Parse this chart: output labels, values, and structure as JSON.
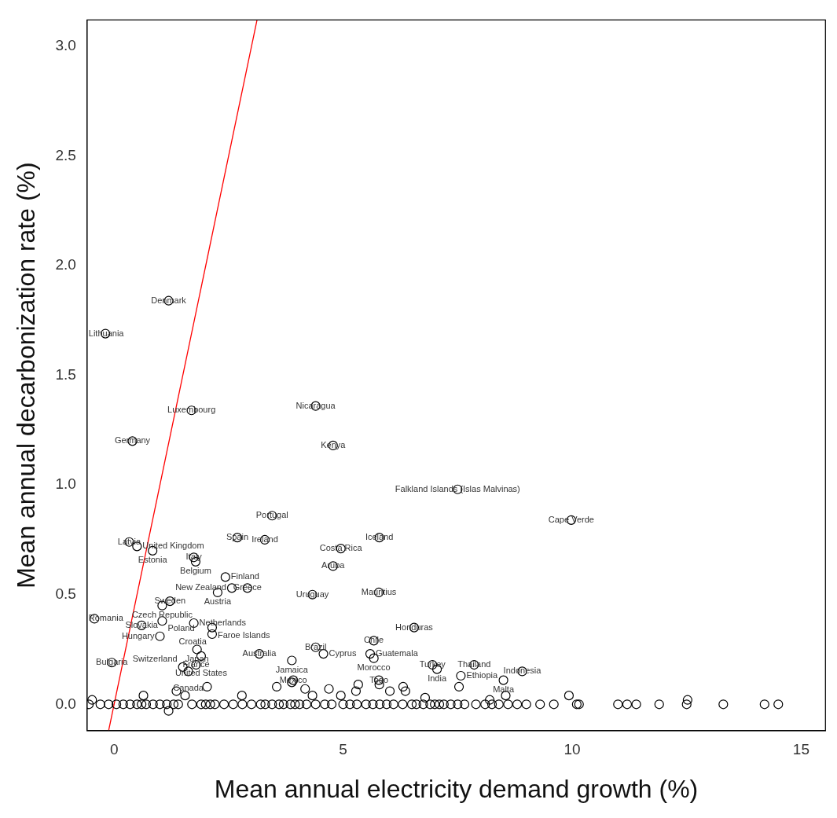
{
  "chart_data": {
    "type": "scatter",
    "xlabel": "Mean annual electricity demand growth (%)",
    "ylabel": "Mean annual decarbonization rate (%)",
    "xlim": [
      -0.59,
      15.53
    ],
    "ylim": [
      -0.12,
      3.12
    ],
    "xticks": [
      0,
      5,
      10,
      15
    ],
    "yticks": [
      {
        "value": 0,
        "label": "0.0"
      },
      {
        "value": 0.5,
        "label": "0.5"
      },
      {
        "value": 1,
        "label": "1.0"
      },
      {
        "value": 1.5,
        "label": "1.5"
      },
      {
        "value": 2,
        "label": "2.0"
      },
      {
        "value": 2.5,
        "label": "2.5"
      },
      {
        "value": 3,
        "label": "3.0"
      }
    ],
    "grid": false,
    "legend": false,
    "series": [
      {
        "type": "scatter",
        "color": "#000000",
        "marker": "circle",
        "x": [
          1.19,
          -0.19,
          1.69,
          0.4,
          4.4,
          4.78,
          7.5,
          9.98,
          3.45,
          5.79,
          2.69,
          3.29,
          4.95,
          4.78,
          0.33,
          0.5,
          0.84,
          1.74,
          1.78,
          2.43,
          2.91,
          2.57,
          2.26,
          4.33,
          5.78,
          1.22,
          1.05,
          -0.43,
          0.6,
          1.05,
          1.74,
          2.14,
          2.14,
          1,
          6.55,
          5.67,
          4.4,
          4.57,
          5.59,
          5.67,
          1.81,
          1.9,
          3.17,
          3.88,
          -0.05,
          1.5,
          1.79,
          1.62,
          6.95,
          7.05,
          7.86,
          7.57,
          8.91,
          8.5,
          3.91,
          5.78,
          -0.48,
          0.64,
          1.36,
          1.55,
          1.19,
          2.03,
          2.79,
          3.55,
          3.88,
          4.17,
          4.33,
          4.69,
          4.95,
          5.33,
          5.28,
          5.79,
          6.02,
          6.31,
          6.36,
          6.79,
          7.53,
          8.55,
          9.93,
          12.52,
          8.2,
          -0.55,
          -0.3,
          -0.12,
          0.05,
          0.2,
          0.35,
          0.5,
          0.6,
          0.7,
          0.85,
          1,
          1.15,
          1.3,
          1.4,
          1.7,
          1.9,
          2,
          2.1,
          2.2,
          2.4,
          2.6,
          2.8,
          3,
          3.2,
          3.3,
          3.45,
          3.6,
          3.7,
          3.85,
          3.95,
          4.05,
          4.2,
          4.4,
          4.6,
          4.75,
          5,
          5.15,
          5.3,
          5.5,
          5.65,
          5.8,
          5.95,
          6.1,
          6.3,
          6.5,
          6.6,
          6.75,
          6.9,
          7.1,
          7.2,
          7.35,
          7.5,
          7.65,
          7.9,
          8.1,
          8.25,
          8.6,
          8.8,
          9,
          9.3,
          9.6,
          10.1,
          11,
          11.2,
          11.4,
          11.9,
          12.5,
          13.3,
          14.2,
          14.5,
          7,
          8.4,
          10.15
        ],
        "values": [
          1.84,
          1.69,
          1.34,
          1.2,
          1.36,
          1.18,
          0.98,
          0.84,
          0.86,
          0.76,
          0.76,
          0.75,
          0.71,
          0.63,
          0.74,
          0.72,
          0.7,
          0.67,
          0.65,
          0.58,
          0.53,
          0.53,
          0.51,
          0.5,
          0.51,
          0.47,
          0.45,
          0.39,
          0.36,
          0.38,
          0.37,
          0.35,
          0.32,
          0.31,
          0.35,
          0.29,
          0.26,
          0.23,
          0.23,
          0.21,
          0.25,
          0.22,
          0.23,
          0.2,
          0.19,
          0.17,
          0.18,
          0.15,
          0.18,
          0.16,
          0.18,
          0.13,
          0.15,
          0.11,
          0.11,
          0.11,
          0.02,
          0.04,
          0.06,
          0.04,
          -0.03,
          0.08,
          0.04,
          0.08,
          0.1,
          0.07,
          0.04,
          0.07,
          0.04,
          0.09,
          0.06,
          0.09,
          0.06,
          0.08,
          0.06,
          0.03,
          0.08,
          0.04,
          0.04,
          0.02,
          0.02,
          0,
          0,
          0,
          0,
          0,
          0,
          0,
          0,
          0,
          0,
          0,
          0,
          0,
          0,
          0,
          0,
          0,
          0,
          0,
          0,
          0,
          0,
          0,
          0,
          0,
          0,
          0,
          0,
          0,
          0,
          0,
          0,
          0,
          0,
          0,
          0,
          0,
          0,
          0,
          0,
          0,
          0,
          0,
          0,
          0,
          0,
          0,
          0,
          0,
          0,
          0,
          0,
          0,
          0,
          0,
          0,
          0,
          0,
          0,
          0,
          0,
          0,
          0,
          0,
          0,
          0,
          0,
          0,
          0,
          0,
          0,
          0,
          0
        ]
      },
      {
        "type": "line",
        "color": "#ff0000",
        "marker": "none",
        "x": [
          -0.12,
          3.12
        ],
        "values": [
          -0.12,
          3.12
        ]
      }
    ],
    "annotations": [
      {
        "text": "Denmark",
        "x": 1.19,
        "y": 1.84
      },
      {
        "text": "Lithuania",
        "x": -0.19,
        "y": 1.69
      },
      {
        "text": "Luxembourg",
        "x": 1.69,
        "y": 1.34
      },
      {
        "text": "Germany",
        "x": 0.4,
        "y": 1.2
      },
      {
        "text": "Nicaragua",
        "x": 4.4,
        "y": 1.36
      },
      {
        "text": "Kenya",
        "x": 4.78,
        "y": 1.18
      },
      {
        "text": "Falkland Islands (Islas Malvinas)",
        "x": 7.5,
        "y": 0.98
      },
      {
        "text": "Cape Verde",
        "x": 9.98,
        "y": 0.84
      },
      {
        "text": "Portugal",
        "x": 3.45,
        "y": 0.86
      },
      {
        "text": "Iceland",
        "x": 5.79,
        "y": 0.76
      },
      {
        "text": "Spain",
        "x": 2.69,
        "y": 0.76
      },
      {
        "text": "Ireland",
        "x": 3.29,
        "y": 0.75
      },
      {
        "text": "Costa Rica",
        "x": 4.95,
        "y": 0.71
      },
      {
        "text": "Aruba",
        "x": 4.78,
        "y": 0.63
      },
      {
        "text": "Latvia",
        "x": 0.33,
        "y": 0.74
      },
      {
        "text": "United Kingdom",
        "x": 0.5,
        "y": 0.72
      },
      {
        "text": "Estonia",
        "x": 0.84,
        "y": 0.7
      },
      {
        "text": "Italy",
        "x": 1.74,
        "y": 0.67
      },
      {
        "text": "Belgium",
        "x": 1.78,
        "y": 0.65
      },
      {
        "text": "Finland",
        "x": 2.43,
        "y": 0.58
      },
      {
        "text": "Greece",
        "x": 2.91,
        "y": 0.53
      },
      {
        "text": "New Zealand",
        "x": 2.57,
        "y": 0.53
      },
      {
        "text": "Austria",
        "x": 2.26,
        "y": 0.51
      },
      {
        "text": "Uruguay",
        "x": 4.33,
        "y": 0.5
      },
      {
        "text": "Mauritius",
        "x": 5.78,
        "y": 0.51
      },
      {
        "text": "Sweden",
        "x": 1.22,
        "y": 0.47
      },
      {
        "text": "Czech Republic",
        "x": 1.05,
        "y": 0.45
      },
      {
        "text": "Romania",
        "x": -0.43,
        "y": 0.39
      },
      {
        "text": "Slovakia",
        "x": 0.6,
        "y": 0.36
      },
      {
        "text": "Poland",
        "x": 1.05,
        "y": 0.38
      },
      {
        "text": "Netherlands",
        "x": 1.74,
        "y": 0.37
      },
      {
        "text": "Faroe Islands",
        "x": 2.14,
        "y": 0.35
      },
      {
        "text": "Croatia",
        "x": 2.14,
        "y": 0.32
      },
      {
        "text": "Hungary",
        "x": 1,
        "y": 0.31
      },
      {
        "text": "Honduras",
        "x": 6.55,
        "y": 0.35
      },
      {
        "text": "Chile",
        "x": 5.67,
        "y": 0.29
      },
      {
        "text": "Brazil",
        "x": 4.4,
        "y": 0.26
      },
      {
        "text": "Cyprus",
        "x": 4.57,
        "y": 0.23
      },
      {
        "text": "Guatemala",
        "x": 5.59,
        "y": 0.23
      },
      {
        "text": "Morocco",
        "x": 5.67,
        "y": 0.21
      },
      {
        "text": "Japan",
        "x": 1.81,
        "y": 0.25
      },
      {
        "text": "United States",
        "x": 1.9,
        "y": 0.22
      },
      {
        "text": "Australia",
        "x": 3.17,
        "y": 0.23
      },
      {
        "text": "Jamaica",
        "x": 3.88,
        "y": 0.2
      },
      {
        "text": "Bulgaria",
        "x": -0.05,
        "y": 0.19
      },
      {
        "text": "Switzerland",
        "x": 1.5,
        "y": 0.17
      },
      {
        "text": "France",
        "x": 1.79,
        "y": 0.18
      },
      {
        "text": "Canada",
        "x": 1.62,
        "y": 0.15
      },
      {
        "text": "Turkey",
        "x": 6.95,
        "y": 0.18
      },
      {
        "text": "India",
        "x": 7.05,
        "y": 0.16
      },
      {
        "text": "Thailand",
        "x": 7.86,
        "y": 0.18
      },
      {
        "text": "Ethiopia",
        "x": 7.57,
        "y": 0.13
      },
      {
        "text": "Indonesia",
        "x": 8.91,
        "y": 0.15
      },
      {
        "text": "Malta",
        "x": 8.5,
        "y": 0.11
      },
      {
        "text": "Mexico",
        "x": 3.91,
        "y": 0.11
      },
      {
        "text": "Togo",
        "x": 5.78,
        "y": 0.11
      }
    ]
  }
}
